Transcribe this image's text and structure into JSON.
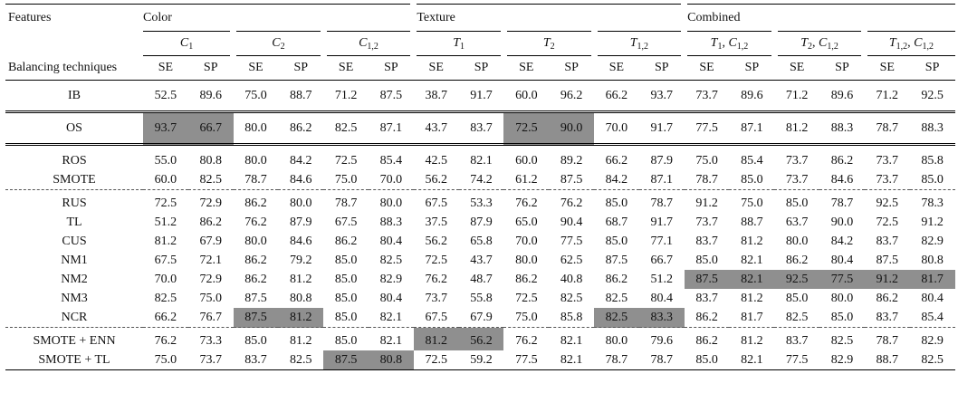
{
  "header": {
    "features_label": "Features",
    "balancing_label": "Balancing techniques",
    "groups": [
      "Color",
      "Texture",
      "Combined"
    ],
    "subgroups": [
      {
        "base": "C",
        "sub": "1",
        "prefix": ""
      },
      {
        "base": "C",
        "sub": "2",
        "prefix": ""
      },
      {
        "base": "C",
        "sub": "1,2",
        "prefix": ""
      },
      {
        "base": "T",
        "sub": "1",
        "prefix": ""
      },
      {
        "base": "T",
        "sub": "2",
        "prefix": ""
      },
      {
        "base": "T",
        "sub": "1,2",
        "prefix": ""
      },
      {
        "base": "C",
        "sub": "1,2",
        "prefix_base": "T",
        "prefix_sub": "1"
      },
      {
        "base": "C",
        "sub": "1,2",
        "prefix_base": "T",
        "prefix_sub": "2"
      },
      {
        "base": "C",
        "sub": "1,2",
        "prefix_base": "T",
        "prefix_sub": "1,2"
      }
    ],
    "metrics": [
      "SE",
      "SP"
    ]
  },
  "rows": [
    {
      "label": "IB",
      "values": [
        "52.5",
        "89.6",
        "75.0",
        "88.7",
        "71.2",
        "87.5",
        "38.7",
        "91.7",
        "60.0",
        "96.2",
        "66.2",
        "93.7",
        "73.7",
        "89.6",
        "71.2",
        "89.6",
        "71.2",
        "92.5"
      ],
      "highlight": []
    },
    {
      "label": "OS",
      "values": [
        "93.7",
        "66.7",
        "80.0",
        "86.2",
        "82.5",
        "87.1",
        "43.7",
        "83.7",
        "72.5",
        "90.0",
        "70.0",
        "91.7",
        "77.5",
        "87.1",
        "81.2",
        "88.3",
        "78.7",
        "88.3"
      ],
      "highlight": [
        0,
        1,
        8,
        9
      ]
    },
    {
      "label": "ROS",
      "values": [
        "55.0",
        "80.8",
        "80.0",
        "84.2",
        "72.5",
        "85.4",
        "42.5",
        "82.1",
        "60.0",
        "89.2",
        "66.2",
        "87.9",
        "75.0",
        "85.4",
        "73.7",
        "86.2",
        "73.7",
        "85.8"
      ],
      "highlight": []
    },
    {
      "label": "SMOTE",
      "values": [
        "60.0",
        "82.5",
        "78.7",
        "84.6",
        "75.0",
        "70.0",
        "56.2",
        "74.2",
        "61.2",
        "87.5",
        "84.2",
        "87.1",
        "78.7",
        "85.0",
        "73.7",
        "84.6",
        "73.7",
        "85.0"
      ],
      "highlight": []
    },
    {
      "label": "RUS",
      "values": [
        "72.5",
        "72.9",
        "86.2",
        "80.0",
        "78.7",
        "80.0",
        "67.5",
        "53.3",
        "76.2",
        "76.2",
        "85.0",
        "78.7",
        "91.2",
        "75.0",
        "85.0",
        "78.7",
        "92.5",
        "78.3"
      ],
      "highlight": []
    },
    {
      "label": "TL",
      "values": [
        "51.2",
        "86.2",
        "76.2",
        "87.9",
        "67.5",
        "88.3",
        "37.5",
        "87.9",
        "65.0",
        "90.4",
        "68.7",
        "91.7",
        "73.7",
        "88.7",
        "63.7",
        "90.0",
        "72.5",
        "91.2"
      ],
      "highlight": []
    },
    {
      "label": "CUS",
      "values": [
        "81.2",
        "67.9",
        "80.0",
        "84.6",
        "86.2",
        "80.4",
        "56.2",
        "65.8",
        "70.0",
        "77.5",
        "85.0",
        "77.1",
        "83.7",
        "81.2",
        "80.0",
        "84.2",
        "83.7",
        "82.9"
      ],
      "highlight": []
    },
    {
      "label": "NM1",
      "values": [
        "67.5",
        "72.1",
        "86.2",
        "79.2",
        "85.0",
        "82.5",
        "72.5",
        "43.7",
        "80.0",
        "62.5",
        "87.5",
        "66.7",
        "85.0",
        "82.1",
        "86.2",
        "80.4",
        "87.5",
        "80.8"
      ],
      "highlight": []
    },
    {
      "label": "NM2",
      "values": [
        "70.0",
        "72.9",
        "86.2",
        "81.2",
        "85.0",
        "82.9",
        "76.2",
        "48.7",
        "86.2",
        "40.8",
        "86.2",
        "51.2",
        "87.5",
        "82.1",
        "92.5",
        "77.5",
        "91.2",
        "81.7"
      ],
      "highlight": [
        12,
        13,
        14,
        15,
        16,
        17
      ]
    },
    {
      "label": "NM3",
      "values": [
        "82.5",
        "75.0",
        "87.5",
        "80.8",
        "85.0",
        "80.4",
        "73.7",
        "55.8",
        "72.5",
        "82.5",
        "82.5",
        "80.4",
        "83.7",
        "81.2",
        "85.0",
        "80.0",
        "86.2",
        "80.4"
      ],
      "highlight": []
    },
    {
      "label": "NCR",
      "values": [
        "66.2",
        "76.7",
        "87.5",
        "81.2",
        "85.0",
        "82.1",
        "67.5",
        "67.9",
        "75.0",
        "85.8",
        "82.5",
        "83.3",
        "86.2",
        "81.7",
        "82.5",
        "85.0",
        "83.7",
        "85.4"
      ],
      "highlight": [
        2,
        3,
        10,
        11
      ]
    },
    {
      "label": "SMOTE + ENN",
      "values": [
        "76.2",
        "73.3",
        "85.0",
        "81.2",
        "85.0",
        "82.1",
        "81.2",
        "56.2",
        "76.2",
        "82.1",
        "80.0",
        "79.6",
        "86.2",
        "81.2",
        "83.7",
        "82.5",
        "78.7",
        "82.9"
      ],
      "highlight": [
        6,
        7
      ]
    },
    {
      "label": "SMOTE + TL",
      "values": [
        "75.0",
        "73.7",
        "83.7",
        "82.5",
        "87.5",
        "80.8",
        "72.5",
        "59.2",
        "77.5",
        "82.1",
        "78.7",
        "78.7",
        "85.0",
        "82.1",
        "77.5",
        "82.9",
        "88.7",
        "82.5"
      ],
      "highlight": [
        4,
        5
      ]
    }
  ]
}
